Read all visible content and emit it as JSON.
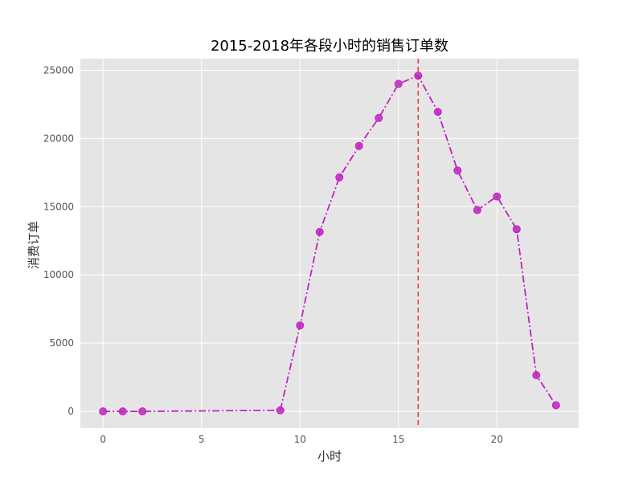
{
  "chart_data": {
    "type": "line",
    "title": "2015-2018年各段小时的销售订单数",
    "xlabel": "小时",
    "ylabel": "消费订单",
    "xlim": [
      -1.15,
      24.15
    ],
    "ylim": [
      -1230,
      25850
    ],
    "xticks": [
      0,
      5,
      10,
      15,
      20
    ],
    "yticks": [
      0,
      5000,
      10000,
      15000,
      20000,
      25000
    ],
    "grid": true,
    "series": [
      {
        "color": "#bf24bf",
        "line_style": "dash-dot",
        "marker": "circle",
        "x": [
          0,
          1,
          2,
          9,
          10,
          11,
          12,
          13,
          14,
          15,
          16,
          17,
          18,
          19,
          20,
          21,
          22,
          23
        ],
        "y": [
          0,
          0,
          0,
          80,
          6300,
          13150,
          17150,
          19450,
          21500,
          24000,
          24600,
          21950,
          17650,
          14750,
          15750,
          13350,
          2650,
          450
        ]
      }
    ],
    "reference_line": {
      "x": 16,
      "color": "#e8413c",
      "style": "dashed"
    },
    "colors": {
      "plot_bg": "#e5e5e5",
      "grid": "#ffffff",
      "figure_bg": "#ffffff"
    }
  }
}
